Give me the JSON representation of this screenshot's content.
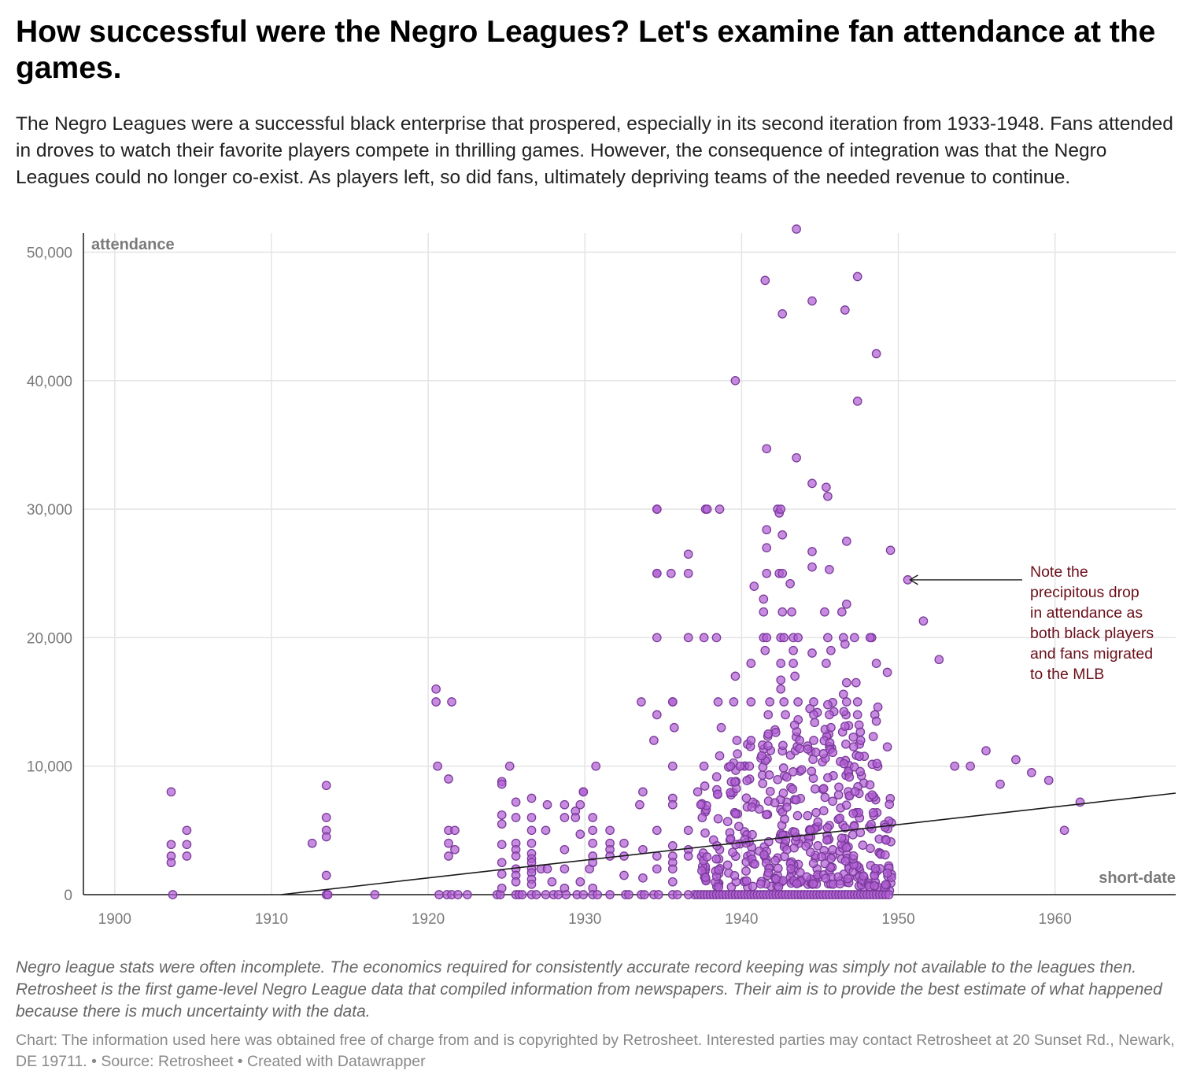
{
  "title": "How successful were the Negro Leagues? Let's examine fan attendance at the games.",
  "subtitle": "The Negro Leagues were a successful black enterprise that prospered, especially in its second iteration from 1933-1948. Fans attended in droves to watch their favorite players compete in thrilling games. However, the consequence of integration was that the Negro Leagues could no longer co-exist. As players left, so did fans, ultimately depriving teams of the needed revenue to continue.",
  "notes": "Negro league stats were often incomplete. The economics required for consistently accurate record keeping was simply not available to the leagues then. Retrosheet is the first game-level Negro League data that compiled information from newspapers. Their aim is to provide the best estimate of what happened because there is much uncertainty with the data.",
  "footer": "Chart: The information used here was obtained free of charge from and is copyrighted by Retrosheet. Interested parties may contact Retrosheet at 20 Sunset Rd., Newark, DE 19711. • Source: Retrosheet • Created with Datawrapper",
  "colors": {
    "point_fill": "#b25fd4",
    "point_stroke": "#7a3a9a",
    "annotation": "#6b0f1a",
    "trend": "#1a1a1a",
    "grid": "#e4e4e4"
  },
  "chart_data": {
    "type": "scatter",
    "xlabel": "short-date",
    "ylabel": "attendance",
    "xlim": [
      1898,
      1967.7
    ],
    "ylim": [
      0,
      51500
    ],
    "x_ticks": [
      "1900",
      "1910",
      "1920",
      "1930",
      "1940",
      "1950",
      "1960"
    ],
    "y_ticks": [
      "0",
      "10,000",
      "20,000",
      "30,000",
      "40,000",
      "50,000"
    ],
    "grid": true,
    "trendline": [
      [
        1910.6,
        0
      ],
      [
        1967.7,
        7900
      ]
    ],
    "annotation": {
      "lines": [
        "Note the",
        "precipitous drop",
        "in attendance as",
        "both black players",
        "and fans migrated",
        "to the MLB"
      ],
      "arrow_target": [
        1950.6,
        24500
      ]
    },
    "points": [
      [
        1903.6,
        8000
      ],
      [
        1903.6,
        3900
      ],
      [
        1903.6,
        3000
      ],
      [
        1903.6,
        2500
      ],
      [
        1903.7,
        0
      ],
      [
        1904.6,
        5000
      ],
      [
        1904.6,
        3900
      ],
      [
        1904.6,
        3000
      ],
      [
        1912.6,
        4000
      ],
      [
        1913.5,
        8500
      ],
      [
        1913.5,
        6000
      ],
      [
        1913.5,
        5000
      ],
      [
        1913.5,
        4500
      ],
      [
        1913.5,
        1500
      ],
      [
        1913.5,
        0
      ],
      [
        1913.6,
        0
      ],
      [
        1916.6,
        0
      ],
      [
        1920.5,
        16000
      ],
      [
        1920.5,
        15000
      ],
      [
        1920.6,
        10000
      ],
      [
        1921.3,
        9000
      ],
      [
        1921.3,
        5000
      ],
      [
        1921.3,
        4000
      ],
      [
        1921.3,
        3000
      ],
      [
        1921.5,
        15000
      ],
      [
        1921.7,
        5000
      ],
      [
        1921.7,
        3500
      ],
      [
        1920.7,
        0
      ],
      [
        1921.2,
        0
      ],
      [
        1921.5,
        0
      ],
      [
        1921.9,
        0
      ],
      [
        1922.5,
        0
      ],
      [
        1924.4,
        0
      ],
      [
        1924.6,
        0
      ],
      [
        1924.7,
        8800
      ],
      [
        1924.7,
        8600
      ],
      [
        1924.7,
        6200
      ],
      [
        1924.7,
        5500
      ],
      [
        1924.7,
        3900
      ],
      [
        1924.7,
        2500
      ],
      [
        1924.7,
        1600
      ],
      [
        1924.7,
        500
      ],
      [
        1925.2,
        10000
      ],
      [
        1925.6,
        7200
      ],
      [
        1925.6,
        6000
      ],
      [
        1925.6,
        4000
      ],
      [
        1925.6,
        3500
      ],
      [
        1925.6,
        3000
      ],
      [
        1925.6,
        2000
      ],
      [
        1925.6,
        1500
      ],
      [
        1925.6,
        1000
      ],
      [
        1925.6,
        0
      ],
      [
        1925.8,
        0
      ],
      [
        1926.0,
        0
      ],
      [
        1926.6,
        7500
      ],
      [
        1926.6,
        6000
      ],
      [
        1926.6,
        5000
      ],
      [
        1926.6,
        4000
      ],
      [
        1926.6,
        3200
      ],
      [
        1926.6,
        2800
      ],
      [
        1926.6,
        2500
      ],
      [
        1926.6,
        2000
      ],
      [
        1926.6,
        1700
      ],
      [
        1926.6,
        1200
      ],
      [
        1926.6,
        800
      ],
      [
        1926.6,
        0
      ],
      [
        1926.9,
        0
      ],
      [
        1927.2,
        2000
      ],
      [
        1927.5,
        5000
      ],
      [
        1927.6,
        2000
      ],
      [
        1927.6,
        7000
      ],
      [
        1927.5,
        0
      ],
      [
        1927.9,
        1000
      ],
      [
        1928.0,
        0
      ],
      [
        1928.3,
        0
      ],
      [
        1928.7,
        7000
      ],
      [
        1928.7,
        6000
      ],
      [
        1928.7,
        3500
      ],
      [
        1928.7,
        2000
      ],
      [
        1928.7,
        500
      ],
      [
        1928.8,
        0
      ],
      [
        1929.4,
        6500
      ],
      [
        1929.4,
        6000
      ],
      [
        1929.7,
        7000
      ],
      [
        1929.7,
        4700
      ],
      [
        1929.7,
        1000
      ],
      [
        1929.9,
        8000
      ],
      [
        1929.9,
        8000
      ],
      [
        1929.5,
        0
      ],
      [
        1929.9,
        0
      ],
      [
        1930.3,
        2000
      ],
      [
        1930.5,
        6000
      ],
      [
        1930.5,
        5000
      ],
      [
        1930.5,
        4000
      ],
      [
        1930.5,
        3000
      ],
      [
        1930.5,
        2500
      ],
      [
        1930.5,
        500
      ],
      [
        1930.5,
        0
      ],
      [
        1930.7,
        10000
      ],
      [
        1930.8,
        0
      ],
      [
        1931.6,
        5000
      ],
      [
        1931.6,
        4000
      ],
      [
        1931.6,
        3500
      ],
      [
        1931.6,
        3000
      ],
      [
        1931.6,
        0
      ],
      [
        1932.5,
        4000
      ],
      [
        1932.5,
        3000
      ],
      [
        1932.5,
        1500
      ],
      [
        1932.6,
        0
      ],
      [
        1932.8,
        0
      ],
      [
        1933.5,
        7000
      ],
      [
        1933.7,
        8000
      ],
      [
        1933.7,
        3500
      ],
      [
        1933.6,
        15000
      ],
      [
        1933.7,
        1300
      ],
      [
        1933.6,
        0
      ],
      [
        1933.8,
        0
      ],
      [
        1934.4,
        12000
      ],
      [
        1934.6,
        30000
      ],
      [
        1934.6,
        30000
      ],
      [
        1934.6,
        25000
      ],
      [
        1934.6,
        25000
      ],
      [
        1934.6,
        20000
      ],
      [
        1934.6,
        14000
      ],
      [
        1934.6,
        5000
      ],
      [
        1934.6,
        3000
      ],
      [
        1934.6,
        2000
      ],
      [
        1934.4,
        0
      ],
      [
        1934.7,
        0
      ],
      [
        1935.5,
        25000
      ],
      [
        1935.6,
        15000
      ],
      [
        1935.6,
        15000
      ],
      [
        1935.6,
        10000
      ],
      [
        1935.7,
        13000
      ],
      [
        1935.6,
        7500
      ],
      [
        1935.6,
        7000
      ],
      [
        1935.6,
        3800
      ],
      [
        1935.6,
        3000
      ],
      [
        1935.6,
        2500
      ],
      [
        1935.6,
        2000
      ],
      [
        1935.6,
        1000
      ],
      [
        1935.6,
        0
      ],
      [
        1935.9,
        0
      ],
      [
        1936.6,
        26500
      ],
      [
        1936.6,
        25000
      ],
      [
        1936.6,
        20000
      ],
      [
        1936.6,
        5000
      ],
      [
        1936.6,
        3500
      ],
      [
        1936.6,
        3000
      ],
      [
        1936.6,
        0
      ],
      [
        1937.2,
        8000
      ],
      [
        1937.4,
        7000
      ],
      [
        1937.6,
        20000
      ],
      [
        1937.6,
        10000
      ],
      [
        1937.7,
        30000
      ],
      [
        1937.8,
        30000
      ],
      [
        1938.4,
        20000
      ],
      [
        1938.6,
        30000
      ],
      [
        1938.5,
        15000
      ],
      [
        1938.6,
        10800
      ],
      [
        1938.7,
        13000
      ],
      [
        1939.3,
        10000
      ],
      [
        1939.5,
        15000
      ],
      [
        1939.6,
        17000
      ],
      [
        1939.6,
        40000
      ],
      [
        1939.7,
        12000
      ],
      [
        1939.9,
        10000
      ],
      [
        1940.6,
        18000
      ],
      [
        1940.6,
        12000
      ],
      [
        1940.8,
        24000
      ],
      [
        1940.6,
        15000
      ],
      [
        1940.5,
        10000
      ],
      [
        1941.4,
        23000
      ],
      [
        1941.4,
        22000
      ],
      [
        1941.4,
        20000
      ],
      [
        1941.5,
        19000
      ],
      [
        1941.5,
        47800
      ],
      [
        1941.6,
        34700
      ],
      [
        1941.6,
        28400
      ],
      [
        1941.6,
        27000
      ],
      [
        1941.6,
        25000
      ],
      [
        1941.6,
        20000
      ],
      [
        1941.7,
        14000
      ],
      [
        1941.8,
        15000
      ],
      [
        1941.7,
        12500
      ],
      [
        1942.3,
        30000
      ],
      [
        1942.4,
        29700
      ],
      [
        1942.5,
        30000
      ],
      [
        1942.4,
        25000
      ],
      [
        1942.5,
        20000
      ],
      [
        1942.5,
        18000
      ],
      [
        1942.5,
        16700
      ],
      [
        1942.5,
        16000
      ],
      [
        1942.6,
        45200
      ],
      [
        1942.6,
        28000
      ],
      [
        1942.6,
        25000
      ],
      [
        1942.6,
        22000
      ],
      [
        1942.7,
        20000
      ],
      [
        1942.7,
        15000
      ],
      [
        1942.8,
        14000
      ],
      [
        1943.1,
        24200
      ],
      [
        1943.2,
        22000
      ],
      [
        1943.3,
        20000
      ],
      [
        1943.3,
        19000
      ],
      [
        1943.3,
        18000
      ],
      [
        1943.4,
        17000
      ],
      [
        1943.5,
        51800
      ],
      [
        1943.5,
        34000
      ],
      [
        1943.6,
        20000
      ],
      [
        1943.6,
        15000
      ],
      [
        1943.7,
        12000
      ],
      [
        1944.5,
        46200
      ],
      [
        1944.5,
        32000
      ],
      [
        1944.5,
        26700
      ],
      [
        1944.5,
        25500
      ],
      [
        1944.5,
        18800
      ],
      [
        1944.6,
        15000
      ],
      [
        1944.6,
        14000
      ],
      [
        1944.6,
        12000
      ],
      [
        1945.4,
        31700
      ],
      [
        1945.5,
        31000
      ],
      [
        1945.6,
        25300
      ],
      [
        1945.3,
        22000
      ],
      [
        1945.5,
        20000
      ],
      [
        1945.7,
        19000
      ],
      [
        1945.4,
        18000
      ],
      [
        1945.6,
        14000
      ],
      [
        1945.7,
        13000
      ],
      [
        1946.4,
        22000
      ],
      [
        1946.5,
        20000
      ],
      [
        1946.6,
        45500
      ],
      [
        1946.7,
        27500
      ],
      [
        1946.7,
        22600
      ],
      [
        1946.6,
        19500
      ],
      [
        1946.7,
        16500
      ],
      [
        1946.5,
        15600
      ],
      [
        1946.7,
        15000
      ],
      [
        1946.6,
        13100
      ],
      [
        1947.4,
        48100
      ],
      [
        1947.4,
        38400
      ],
      [
        1947.2,
        20000
      ],
      [
        1947.4,
        15000
      ],
      [
        1947.3,
        16500
      ],
      [
        1947.4,
        14000
      ],
      [
        1947.5,
        13200
      ],
      [
        1947.6,
        12000
      ],
      [
        1948.3,
        20000
      ],
      [
        1948.2,
        20000
      ],
      [
        1948.6,
        42100
      ],
      [
        1948.6,
        18000
      ],
      [
        1948.5,
        14000
      ],
      [
        1948.6,
        13500
      ],
      [
        1948.7,
        14600
      ],
      [
        1948.4,
        12300
      ],
      [
        1949.3,
        17300
      ],
      [
        1949.5,
        26800
      ],
      [
        1949.3,
        11500
      ],
      [
        1950.6,
        24500
      ],
      [
        1951.6,
        21300
      ],
      [
        1952.6,
        18300
      ],
      [
        1953.6,
        10000
      ],
      [
        1954.6,
        10000
      ],
      [
        1955.6,
        11200
      ],
      [
        1956.5,
        8600
      ],
      [
        1957.5,
        10500
      ],
      [
        1958.5,
        9500
      ],
      [
        1959.6,
        8900
      ],
      [
        1960.6,
        5000
      ],
      [
        1961.6,
        7200
      ]
    ],
    "dense_clusters": [
      [
        1937.4,
        1937.8,
        600,
        8500,
        20
      ],
      [
        1938.2,
        1938.7,
        600,
        10000,
        20
      ],
      [
        1939.1,
        1939.9,
        600,
        11000,
        28
      ],
      [
        1940.1,
        1940.9,
        600,
        12000,
        30
      ],
      [
        1941.1,
        1941.9,
        600,
        12500,
        34
      ],
      [
        1942.1,
        1942.9,
        600,
        13000,
        38
      ],
      [
        1943.1,
        1943.9,
        800,
        14000,
        42
      ],
      [
        1944.1,
        1944.9,
        800,
        15000,
        42
      ],
      [
        1945.1,
        1945.9,
        800,
        15000,
        44
      ],
      [
        1946.1,
        1946.9,
        800,
        15000,
        46
      ],
      [
        1947.1,
        1947.9,
        600,
        14000,
        40
      ],
      [
        1948.1,
        1948.9,
        600,
        12000,
        32
      ],
      [
        1949.1,
        1949.6,
        300,
        8000,
        24
      ]
    ],
    "zero_row_range": [
      1937.0,
      1949.6
    ]
  }
}
